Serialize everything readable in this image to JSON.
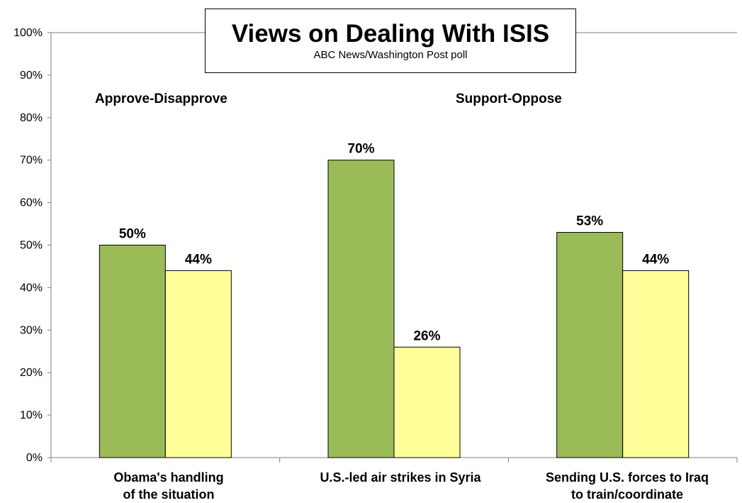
{
  "colors": {
    "green": "#9BBB59",
    "yellow": "#FFFF99",
    "axis": "#7F7F7F"
  },
  "title_box": {
    "title": "Views on Dealing With ISIS",
    "subtitle": "ABC News/Washington  Post poll"
  },
  "groups": {
    "first": "Approve-Disapprove",
    "second": "Support-Oppose"
  },
  "chart_data": {
    "type": "bar",
    "title": "Views on Dealing With ISIS",
    "subtitle": "ABC News/Washington  Post poll",
    "categories": [
      "Obama's handling\nof the situation",
      "U.S.-led air strikes in Syria",
      "Sending U.S. forces to Iraq\nto train/coordinate"
    ],
    "series": [
      {
        "values": [
          50,
          70,
          53
        ],
        "color": "#9BBB59"
      },
      {
        "values": [
          44,
          26,
          44
        ],
        "color": "#FFFF99"
      }
    ],
    "data_labels": [
      [
        "50%",
        "70%",
        "53%"
      ],
      [
        "44%",
        "26%",
        "44%"
      ]
    ],
    "ylim": [
      0,
      100
    ],
    "yticks": [
      "0%",
      "10%",
      "20%",
      "30%",
      "40%",
      "50%",
      "60%",
      "70%",
      "80%",
      "90%",
      "100%"
    ],
    "grid": false,
    "legend": "none"
  }
}
